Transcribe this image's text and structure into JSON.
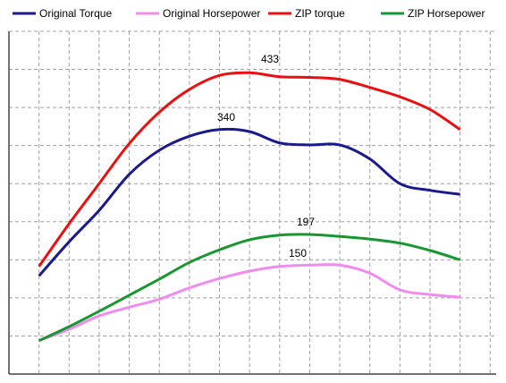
{
  "chart_data": {
    "type": "line",
    "x": [
      0,
      1,
      2,
      3,
      4,
      5,
      6,
      7,
      8,
      9,
      10,
      11,
      12,
      13,
      14
    ],
    "xlim": [
      -1,
      15.2
    ],
    "xticks": [
      0,
      1,
      2,
      3,
      4,
      5,
      6,
      7,
      8,
      9,
      10,
      11,
      12,
      13,
      14,
      15
    ],
    "ylim": [
      0,
      513
    ],
    "yticks": [
      0,
      57,
      114,
      171,
      228,
      285,
      342,
      399,
      456,
      513
    ],
    "grid": true,
    "legend": "top",
    "series": [
      {
        "name": "Original Torque",
        "color": "#1a1a8c",
        "values": [
          147,
          198,
          245,
          299,
          335,
          356,
          366,
          363,
          346,
          343,
          343,
          322,
          285,
          275,
          269
        ]
      },
      {
        "name": "Original Horsepower",
        "color": "#f08cf0",
        "values": [
          50,
          67,
          87,
          100,
          112,
          129,
          143,
          154,
          161,
          163,
          163,
          151,
          126,
          119,
          115
        ]
      },
      {
        "name": "ZIP torque",
        "color": "#e81010",
        "values": [
          161,
          225,
          285,
          345,
          392,
          426,
          447,
          451,
          445,
          444,
          441,
          429,
          415,
          396,
          366
        ]
      },
      {
        "name": "ZIP Horsepower",
        "color": "#1a9630",
        "values": [
          50,
          71,
          94,
          118,
          142,
          167,
          186,
          201,
          208,
          209,
          206,
          202,
          196,
          185,
          171
        ]
      }
    ],
    "annotations": [
      "433",
      "340",
      "197",
      "150"
    ]
  }
}
